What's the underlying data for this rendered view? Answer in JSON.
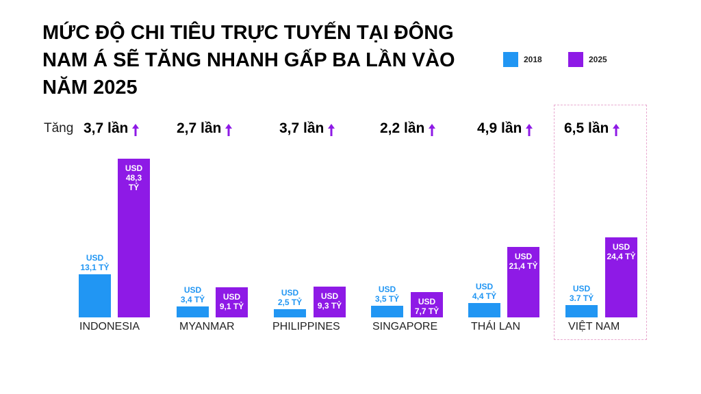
{
  "title_lines": [
    "MỨC ĐỘ CHI TIÊU TRỰC TUYẾN TẠI ĐÔNG",
    "NAM Á SẼ TĂNG NHANH GẤP BA LẦN VÀO",
    "NĂM 2025"
  ],
  "growth_prefix": "Tăng",
  "colors": {
    "s2018": "#2196f3",
    "s2025": "#8e1ae6",
    "highlight_border": "#e8a8cf"
  },
  "chart_data": {
    "type": "bar",
    "categories": [
      "INDONESIA",
      "MYANMAR",
      "PHILIPPINES",
      "SINGAPORE",
      "THÁI LAN",
      "VIỆT NAM"
    ],
    "series": [
      {
        "name": "2018",
        "values": [
          13.1,
          3.4,
          2.5,
          3.5,
          4.4,
          3.7
        ],
        "labels": [
          [
            "USD",
            "13,1 TỶ"
          ],
          [
            "USD",
            "3,4 TỶ"
          ],
          [
            "USD",
            "2,5 TỶ"
          ],
          [
            "USD",
            "3,5 TỶ"
          ],
          [
            "USD",
            "4,4 TỶ"
          ],
          [
            "USD",
            "3.7 TỶ"
          ]
        ]
      },
      {
        "name": "2025",
        "values": [
          48.3,
          9.1,
          9.3,
          7.7,
          21.4,
          24.4
        ],
        "labels": [
          [
            "USD",
            "48,3",
            "TỶ"
          ],
          [
            "USD",
            "9,1 TỶ"
          ],
          [
            "USD",
            "9,3 TỶ"
          ],
          [
            "USD",
            "7,7 TỶ"
          ],
          [
            "USD",
            "21,4 TỶ"
          ],
          [
            "USD",
            "24,4 TỶ"
          ]
        ]
      }
    ],
    "growth": [
      "3,7 lần",
      "2,7 lần",
      "3,7 lần",
      "2,2 lần",
      "4,9 lần",
      "6,5 lần"
    ],
    "legend_position": "top-right",
    "highlighted_category": "VIỆT NAM",
    "title": "",
    "xlabel": "",
    "ylabel": ""
  }
}
